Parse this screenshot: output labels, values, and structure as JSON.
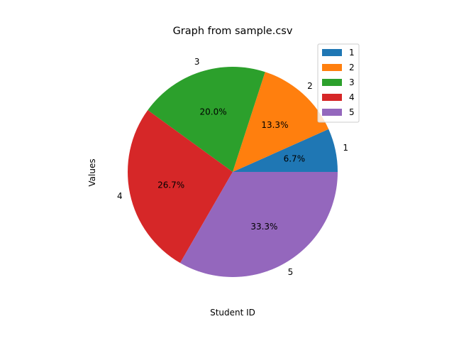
{
  "chart_data": {
    "type": "pie",
    "title": "Graph from sample.csv",
    "xlabel": "Student ID",
    "ylabel": "Values",
    "categories": [
      "1",
      "2",
      "3",
      "4",
      "5"
    ],
    "values": [
      1,
      2,
      3,
      4,
      5
    ],
    "percent_labels": [
      "6.7%",
      "13.3%",
      "20.0%",
      "26.7%",
      "33.3%"
    ],
    "colors": [
      "#1f77b4",
      "#ff7f0e",
      "#2ca02c",
      "#d62728",
      "#9467bd"
    ],
    "start_angle_deg": 0,
    "direction": "counterclockwise",
    "legend": {
      "position": "top-right",
      "entries": [
        "1",
        "2",
        "3",
        "4",
        "5"
      ]
    }
  }
}
